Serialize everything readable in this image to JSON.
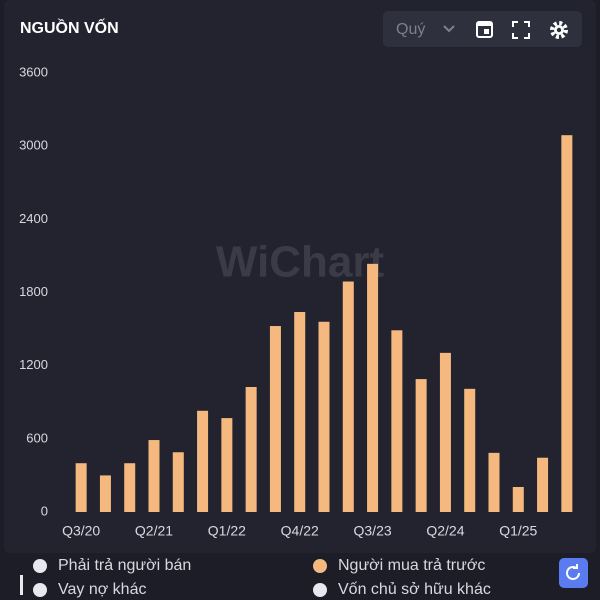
{
  "chart_data": {
    "type": "bar",
    "title": "NGUỒN VỐN",
    "period": "Quý",
    "watermark": "WiChart",
    "categories": [
      "Q3/20",
      null,
      null,
      "Q2/21",
      null,
      null,
      "Q1/22",
      null,
      null,
      "Q4/22",
      null,
      null,
      "Q3/23",
      null,
      null,
      "Q2/24",
      null,
      null,
      "Q1/25",
      null,
      null
    ],
    "series": [
      {
        "name": "Người mua trả trước",
        "color": "#f5b97f",
        "values": [
          400,
          300,
          400,
          590,
          490,
          830,
          770,
          1025,
          1525,
          1640,
          1560,
          1890,
          2035,
          1490,
          1090,
          1305,
          1010,
          485,
          205,
          445,
          3090
        ]
      }
    ],
    "other_legend": [
      {
        "name": "Phải trả người bán",
        "color": "#e8e8ee"
      },
      {
        "name": "Vay nợ khác",
        "color": "#e8e8ee"
      },
      {
        "name": "Vốn chủ sở hữu khác",
        "color": "#e8e8ee"
      }
    ],
    "ylim": [
      0,
      3600
    ],
    "yticks": [
      0,
      600,
      1200,
      1800,
      2400,
      3000,
      3600
    ],
    "grid": false
  }
}
